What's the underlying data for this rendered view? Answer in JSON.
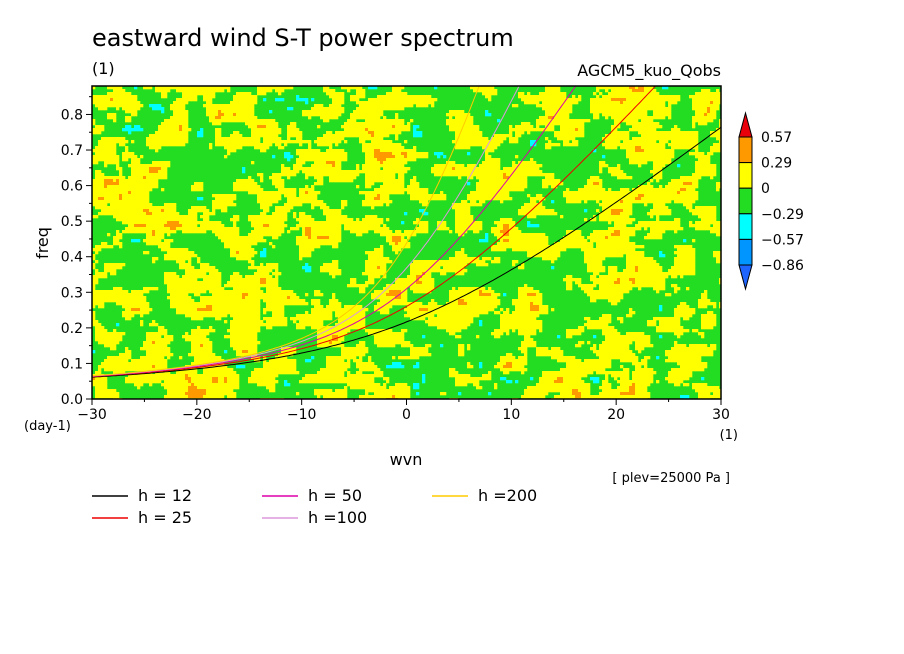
{
  "chart_data": {
    "type": "heatmap",
    "title": "eastward wind S-T power spectrum",
    "subtitle": "(1)",
    "experiment": "AGCM5_kuo_Qobs",
    "xlabel": "wvn",
    "ylabel": "freq",
    "x_unit": "(1)",
    "y_unit": "(day-1)",
    "note": "[ plev=25000 Pa ]",
    "xlim": [
      -30,
      30
    ],
    "ylim": [
      0,
      0.88
    ],
    "x_ticks": [
      -30,
      -20,
      -10,
      0,
      10,
      20,
      30
    ],
    "x_tick_labels": [
      "−30",
      "−20",
      "−10",
      "0",
      "10",
      "20",
      "30"
    ],
    "y_ticks": [
      0.0,
      0.1,
      0.2,
      0.3,
      0.4,
      0.5,
      0.6,
      0.7,
      0.8
    ],
    "y_tick_labels": [
      "0.0",
      "0.1",
      "0.2",
      "0.3",
      "0.4",
      "0.5",
      "0.6",
      "0.7",
      "0.8"
    ],
    "colorbar": {
      "levels": [
        "0.57",
        "0.29",
        "0",
        "−0.29",
        "−0.57",
        "−0.86"
      ],
      "colors": [
        "#e8000b",
        "#ff9900",
        "#ffff00",
        "#22dd22",
        "#00ffff",
        "#0095ff",
        "#1e64ff"
      ]
    },
    "dispersion_curves": [
      {
        "label": "h = 12",
        "h": 12,
        "color": "#000000"
      },
      {
        "label": "h = 25",
        "h": 25,
        "color": "#ee0000"
      },
      {
        "label": "h = 50",
        "h": 50,
        "color": "#dd00aa"
      },
      {
        "label": "h =100",
        "h": 100,
        "color": "#dd99dd"
      },
      {
        "label": "h =200",
        "h": 200,
        "color": "#ffcc00"
      }
    ]
  }
}
